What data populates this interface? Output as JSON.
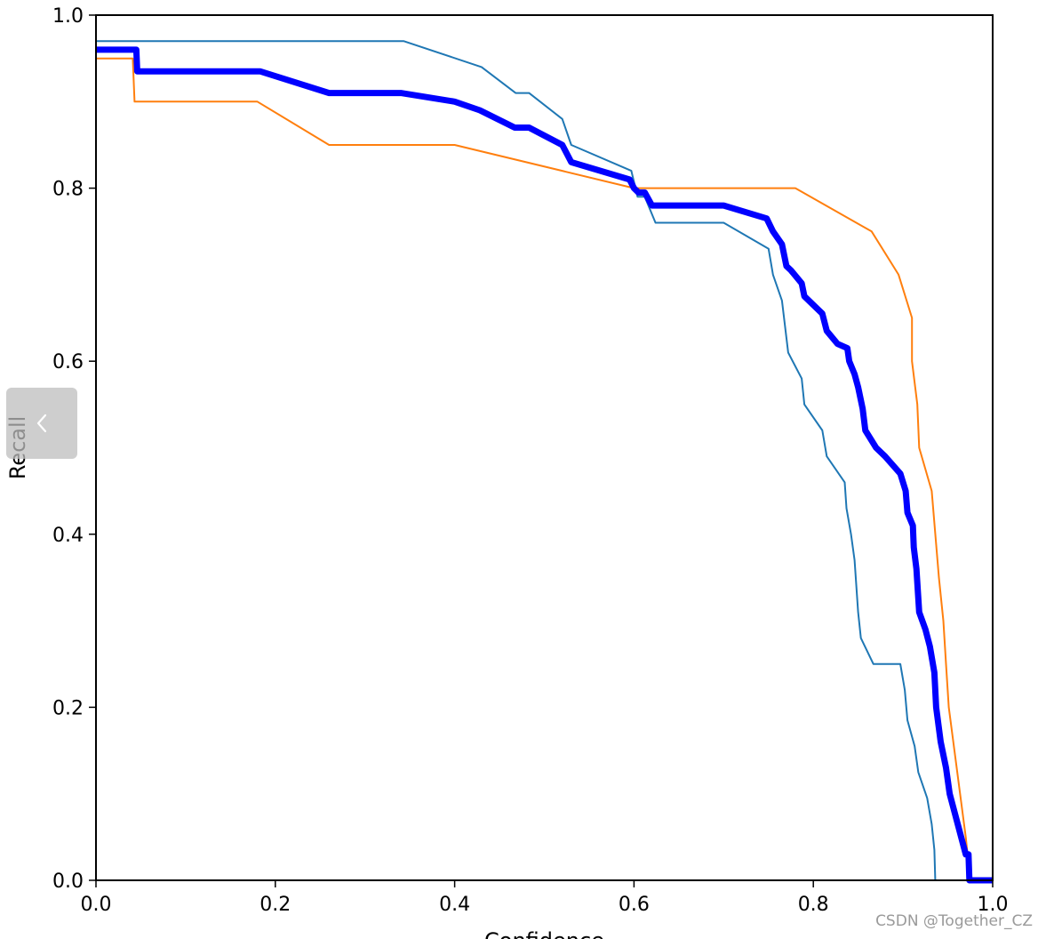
{
  "chart_data": {
    "type": "line",
    "title": "",
    "xlabel": "Confidence",
    "ylabel": "Recall",
    "xlim": [
      0.0,
      1.0
    ],
    "ylim": [
      0.0,
      1.0
    ],
    "xticks": [
      "0.0",
      "0.2",
      "0.4",
      "0.6",
      "0.8",
      "1.0"
    ],
    "yticks": [
      "0.0",
      "0.2",
      "0.4",
      "0.6",
      "0.8",
      "1.0"
    ],
    "grid": false,
    "legend": "none",
    "series": [
      {
        "color": "#1f77b4",
        "width": 2,
        "points": [
          [
            0.0,
            0.97
          ],
          [
            0.343,
            0.97
          ],
          [
            0.43,
            0.94
          ],
          [
            0.468,
            0.91
          ],
          [
            0.483,
            0.91
          ],
          [
            0.52,
            0.88
          ],
          [
            0.53,
            0.85
          ],
          [
            0.597,
            0.82
          ],
          [
            0.604,
            0.79
          ],
          [
            0.612,
            0.79
          ],
          [
            0.624,
            0.76
          ],
          [
            0.7,
            0.76
          ],
          [
            0.75,
            0.73
          ],
          [
            0.755,
            0.7
          ],
          [
            0.765,
            0.67
          ],
          [
            0.772,
            0.61
          ],
          [
            0.787,
            0.58
          ],
          [
            0.79,
            0.55
          ],
          [
            0.81,
            0.52
          ],
          [
            0.815,
            0.49
          ],
          [
            0.835,
            0.46
          ],
          [
            0.837,
            0.43
          ],
          [
            0.842,
            0.4
          ],
          [
            0.846,
            0.37
          ],
          [
            0.85,
            0.31
          ],
          [
            0.853,
            0.28
          ],
          [
            0.867,
            0.25
          ],
          [
            0.897,
            0.25
          ],
          [
            0.902,
            0.22
          ],
          [
            0.905,
            0.185
          ],
          [
            0.913,
            0.155
          ],
          [
            0.917,
            0.125
          ],
          [
            0.927,
            0.095
          ],
          [
            0.932,
            0.065
          ],
          [
            0.935,
            0.035
          ],
          [
            0.936,
            0.0
          ]
        ]
      },
      {
        "color": "#ff7f0e",
        "width": 2,
        "points": [
          [
            0.0,
            0.95
          ],
          [
            0.041,
            0.95
          ],
          [
            0.043,
            0.9
          ],
          [
            0.18,
            0.9
          ],
          [
            0.26,
            0.85
          ],
          [
            0.4,
            0.85
          ],
          [
            0.6,
            0.8
          ],
          [
            0.78,
            0.8
          ],
          [
            0.865,
            0.75
          ],
          [
            0.895,
            0.7
          ],
          [
            0.91,
            0.65
          ],
          [
            0.91,
            0.6
          ],
          [
            0.916,
            0.55
          ],
          [
            0.918,
            0.5
          ],
          [
            0.932,
            0.45
          ],
          [
            0.94,
            0.35
          ],
          [
            0.945,
            0.3
          ],
          [
            0.948,
            0.25
          ],
          [
            0.951,
            0.2
          ],
          [
            0.97,
            0.05
          ],
          [
            0.975,
            0.0
          ],
          [
            1.0,
            0.0
          ]
        ]
      },
      {
        "color": "#0000ff",
        "width": 7,
        "points": [
          [
            0.0,
            0.96
          ],
          [
            0.045,
            0.96
          ],
          [
            0.046,
            0.935
          ],
          [
            0.183,
            0.935
          ],
          [
            0.26,
            0.91
          ],
          [
            0.34,
            0.91
          ],
          [
            0.4,
            0.9
          ],
          [
            0.428,
            0.89
          ],
          [
            0.467,
            0.87
          ],
          [
            0.483,
            0.87
          ],
          [
            0.52,
            0.85
          ],
          [
            0.53,
            0.83
          ],
          [
            0.595,
            0.81
          ],
          [
            0.6,
            0.8
          ],
          [
            0.605,
            0.795
          ],
          [
            0.612,
            0.795
          ],
          [
            0.62,
            0.78
          ],
          [
            0.7,
            0.78
          ],
          [
            0.748,
            0.765
          ],
          [
            0.755,
            0.75
          ],
          [
            0.765,
            0.735
          ],
          [
            0.77,
            0.71
          ],
          [
            0.775,
            0.705
          ],
          [
            0.787,
            0.69
          ],
          [
            0.79,
            0.675
          ],
          [
            0.81,
            0.655
          ],
          [
            0.815,
            0.635
          ],
          [
            0.827,
            0.62
          ],
          [
            0.838,
            0.615
          ],
          [
            0.84,
            0.6
          ],
          [
            0.846,
            0.585
          ],
          [
            0.85,
            0.57
          ],
          [
            0.855,
            0.545
          ],
          [
            0.858,
            0.52
          ],
          [
            0.87,
            0.5
          ],
          [
            0.88,
            0.49
          ],
          [
            0.897,
            0.47
          ],
          [
            0.903,
            0.45
          ],
          [
            0.905,
            0.425
          ],
          [
            0.911,
            0.41
          ],
          [
            0.912,
            0.385
          ],
          [
            0.915,
            0.36
          ],
          [
            0.918,
            0.31
          ],
          [
            0.925,
            0.29
          ],
          [
            0.93,
            0.27
          ],
          [
            0.935,
            0.24
          ],
          [
            0.937,
            0.2
          ],
          [
            0.942,
            0.16
          ],
          [
            0.948,
            0.13
          ],
          [
            0.952,
            0.1
          ],
          [
            0.97,
            0.03
          ],
          [
            0.973,
            0.03
          ],
          [
            0.974,
            0.0
          ],
          [
            1.0,
            0.0
          ]
        ]
      }
    ]
  },
  "watermark": "CSDN @Together_CZ",
  "nav": {
    "icon": "chevron-left-icon"
  }
}
